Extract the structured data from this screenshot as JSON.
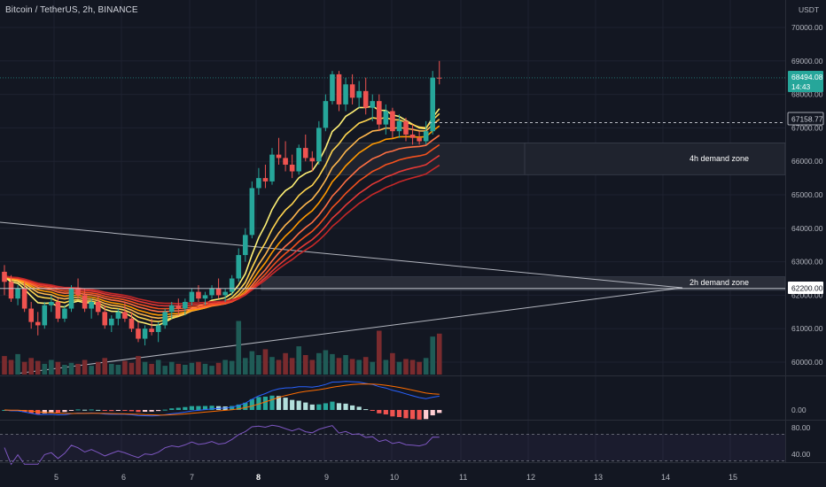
{
  "header": {
    "symbol_title": "Bitcoin / TetherUS, 2h, BINANCE"
  },
  "price_axis": {
    "currency": "USDT",
    "ticks": [
      "70000.00",
      "69000.00",
      "68000.00",
      "67000.00",
      "66000.00",
      "65000.00",
      "64000.00",
      "63000.00",
      "62000.00",
      "61000.00",
      "60000.00"
    ],
    "tick_values": [
      70000,
      69000,
      68000,
      67000,
      66000,
      65000,
      64000,
      63000,
      62000,
      61000,
      60000
    ],
    "current_price_label": "68494.08",
    "countdown_label": "14:43",
    "level_label_1": "67158.77",
    "level_label_2": "62200.00"
  },
  "macd_axis": {
    "label": "0.00"
  },
  "rsi_axis": {
    "labels": [
      "80.00",
      "40.00"
    ]
  },
  "time_axis": {
    "labels": [
      "5",
      "6",
      "7",
      "8",
      "9",
      "10",
      "11",
      "12",
      "13",
      "14",
      "15"
    ]
  },
  "zones": {
    "zone_4h_label": "4h demand zone",
    "zone_2h_label": "2h demand zone"
  },
  "colors": {
    "bull": "#26a69a",
    "bear": "#ef5350",
    "background": "#131722",
    "rsi_line": "#7e57c2",
    "macd_line": "#2962ff",
    "signal_line": "#ff6d00"
  },
  "chart_data": {
    "type": "candlestick",
    "y_range": [
      59700,
      70500
    ],
    "candles": [
      [
        62700,
        62900,
        62000,
        62400
      ],
      [
        62400,
        62600,
        61800,
        61900
      ],
      [
        61900,
        62300,
        61700,
        62200
      ],
      [
        62200,
        62400,
        61500,
        61600
      ],
      [
        61600,
        61800,
        61000,
        61200
      ],
      [
        61200,
        61500,
        60800,
        61100
      ],
      [
        61100,
        61800,
        61000,
        61700
      ],
      [
        61700,
        62000,
        61500,
        61800
      ],
      [
        61800,
        61900,
        61200,
        61300
      ],
      [
        61300,
        61700,
        61200,
        61600
      ],
      [
        61600,
        62300,
        61500,
        62200
      ],
      [
        62200,
        62500,
        61900,
        62000
      ],
      [
        62000,
        62200,
        61500,
        61600
      ],
      [
        61600,
        61900,
        61300,
        61800
      ],
      [
        61800,
        62000,
        61400,
        61500
      ],
      [
        61500,
        61700,
        61000,
        61100
      ],
      [
        61100,
        61400,
        60900,
        61300
      ],
      [
        61300,
        61600,
        61100,
        61500
      ],
      [
        61500,
        61800,
        61200,
        61300
      ],
      [
        61300,
        61500,
        60900,
        61000
      ],
      [
        61000,
        61200,
        60600,
        60700
      ],
      [
        60700,
        61100,
        60500,
        61000
      ],
      [
        61000,
        61300,
        60800,
        60900
      ],
      [
        60900,
        61200,
        60600,
        61100
      ],
      [
        61100,
        61600,
        61000,
        61500
      ],
      [
        61500,
        61800,
        61300,
        61700
      ],
      [
        61700,
        61900,
        61400,
        61600
      ],
      [
        61600,
        61900,
        61400,
        61800
      ],
      [
        61800,
        62200,
        61700,
        62100
      ],
      [
        62100,
        62300,
        61800,
        61900
      ],
      [
        61900,
        62100,
        61700,
        62000
      ],
      [
        62000,
        62300,
        61900,
        62200
      ],
      [
        62200,
        62500,
        61900,
        62000
      ],
      [
        62000,
        62200,
        61800,
        62100
      ],
      [
        62100,
        62600,
        62000,
        62500
      ],
      [
        62500,
        63400,
        62400,
        63200
      ],
      [
        63200,
        64000,
        63000,
        63800
      ],
      [
        63800,
        65400,
        63700,
        65200
      ],
      [
        65200,
        65800,
        65000,
        65500
      ],
      [
        65500,
        65900,
        65200,
        65400
      ],
      [
        65400,
        66400,
        65300,
        66200
      ],
      [
        66200,
        66700,
        65900,
        66100
      ],
      [
        66100,
        66600,
        65700,
        65900
      ],
      [
        65900,
        66200,
        65500,
        65700
      ],
      [
        65700,
        66500,
        65600,
        66400
      ],
      [
        66400,
        66800,
        66000,
        66100
      ],
      [
        66100,
        66300,
        65700,
        66000
      ],
      [
        66000,
        67200,
        65900,
        67000
      ],
      [
        67000,
        68000,
        66900,
        67800
      ],
      [
        67800,
        68700,
        67700,
        68600
      ],
      [
        68600,
        68700,
        67500,
        67700
      ],
      [
        67700,
        68500,
        67500,
        68300
      ],
      [
        68300,
        68600,
        67700,
        67900
      ],
      [
        67900,
        68400,
        67600,
        68100
      ],
      [
        68100,
        68500,
        67400,
        67600
      ],
      [
        67600,
        68000,
        67200,
        67800
      ],
      [
        67800,
        68000,
        66900,
        67100
      ],
      [
        67100,
        67700,
        66800,
        67500
      ],
      [
        67500,
        67600,
        66700,
        66900
      ],
      [
        66900,
        67400,
        66700,
        67200
      ],
      [
        67200,
        67300,
        66600,
        66800
      ],
      [
        66800,
        67100,
        66500,
        66700
      ],
      [
        66700,
        66900,
        66500,
        66600
      ],
      [
        66600,
        67200,
        66500,
        66900
      ],
      [
        66900,
        68700,
        66800,
        68500
      ],
      [
        68500,
        69000,
        68300,
        68494
      ]
    ],
    "volume": [
      38,
      30,
      42,
      26,
      34,
      28,
      22,
      30,
      26,
      20,
      24,
      22,
      30,
      18,
      26,
      34,
      22,
      20,
      28,
      24,
      38,
      26,
      22,
      30,
      18,
      26,
      22,
      20,
      24,
      26,
      22,
      18,
      24,
      30,
      28,
      110,
      34,
      48,
      40,
      52,
      36,
      30,
      44,
      34,
      58,
      40,
      30,
      44,
      50,
      42,
      34,
      40,
      32,
      30,
      36,
      26,
      90,
      30,
      44,
      26,
      32,
      30,
      26,
      34,
      78,
      84
    ],
    "levels": [
      {
        "price": 67158.77,
        "style": "dashed"
      },
      {
        "price": 62200,
        "style": "solid"
      }
    ],
    "zones": [
      {
        "from": 65600,
        "to": 66550,
        "label": "4h demand zone"
      },
      {
        "from": 62150,
        "to": 62550,
        "label": "2h demand zone"
      }
    ],
    "rsi_levels": [
      70,
      30
    ]
  }
}
